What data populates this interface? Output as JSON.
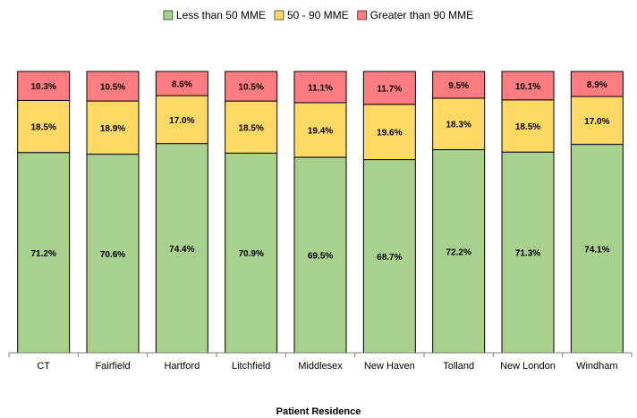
{
  "chart_data": {
    "type": "bar",
    "stacked": true,
    "percent": true,
    "xlabel": "Patient Residence",
    "ylim": [
      0,
      100
    ],
    "legend_position": "top",
    "categories": [
      "CT",
      "Fairfield",
      "Hartford",
      "Litchfield",
      "Middlesex",
      "New Haven",
      "Tolland",
      "New London",
      "Windham"
    ],
    "series": [
      {
        "name": "Less than 50 MME",
        "color": "#a9d18e",
        "values": [
          71.2,
          70.6,
          74.4,
          70.9,
          69.5,
          68.7,
          72.2,
          71.3,
          74.1
        ],
        "labels": [
          "71.2%",
          "70.6%",
          "74.4%",
          "70.9%",
          "69.5%",
          "68.7%",
          "72.2%",
          "71.3%",
          "74.1%"
        ]
      },
      {
        "name": "50 - 90 MME",
        "color": "#ffd966",
        "values": [
          18.5,
          18.9,
          17.0,
          18.5,
          19.4,
          19.6,
          18.3,
          18.5,
          17.0
        ],
        "labels": [
          "18.5%",
          "18.9%",
          "17.0%",
          "18.5%",
          "19.4%",
          "19.6%",
          "18.3%",
          "18.5%",
          "17.0%"
        ]
      },
      {
        "name": "Greater than 90 MME",
        "color": "#ff7c80",
        "values": [
          10.3,
          10.5,
          8.6,
          10.5,
          11.1,
          11.7,
          9.5,
          10.1,
          8.9
        ],
        "labels": [
          "10.3%",
          "10.5%",
          "8.6%",
          "10.5%",
          "11.1%",
          "11.7%",
          "9.5%",
          "10.1%",
          "8.9%"
        ]
      }
    ]
  }
}
